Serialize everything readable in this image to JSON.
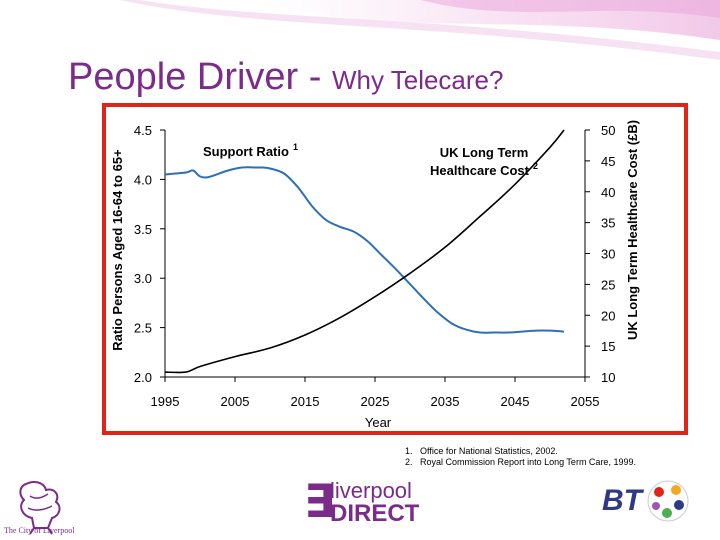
{
  "title": {
    "main": "People Driver - ",
    "sub": "Why Telecare?"
  },
  "chart_data": {
    "type": "line",
    "xlabel": "Year",
    "ylabel_left": "Ratio Persons Aged 16-64 to 65+",
    "ylabel_right": "UK Long Term Healthcare Cost (£B)",
    "x_ticks": [
      "1995",
      "2005",
      "2015",
      "2025",
      "2035",
      "2045",
      "2055"
    ],
    "y_left_ticks": [
      "4.5",
      "4.0",
      "3.5",
      "3.0",
      "2.5",
      "2.0"
    ],
    "y_right_ticks": [
      "50",
      "45",
      "40",
      "35",
      "30",
      "25",
      "20",
      "15",
      "10"
    ],
    "xlim": [
      1995,
      2055
    ],
    "ylim_left": [
      2.0,
      4.5
    ],
    "ylim_right": [
      10,
      50
    ],
    "series": [
      {
        "name": "Support Ratio",
        "label": "Support Ratio",
        "superscript": "1",
        "axis": "left",
        "x": [
          1995,
          1998,
          1999,
          2000,
          2001,
          2002,
          2004,
          2006,
          2008,
          2009,
          2010,
          2012,
          2014,
          2016,
          2018,
          2020,
          2022,
          2024,
          2026,
          2028,
          2030,
          2032,
          2034,
          2036,
          2038,
          2040,
          2042,
          2044,
          2046,
          2048,
          2050,
          2052
        ],
        "values": [
          4.05,
          4.07,
          4.09,
          4.03,
          4.02,
          4.04,
          4.09,
          4.12,
          4.12,
          4.12,
          4.11,
          4.06,
          3.92,
          3.73,
          3.59,
          3.52,
          3.47,
          3.37,
          3.23,
          3.09,
          2.94,
          2.79,
          2.65,
          2.54,
          2.48,
          2.45,
          2.45,
          2.45,
          2.46,
          2.47,
          2.47,
          2.46
        ]
      },
      {
        "name": "UK Long Term Healthcare Cost",
        "label": "UK Long Term Healthcare Cost",
        "superscript": "2",
        "axis": "right",
        "x": [
          1995,
          1998,
          2000,
          2005,
          2010,
          2015,
          2020,
          2025,
          2030,
          2035,
          2040,
          2045,
          2050,
          2052
        ],
        "values": [
          10.8,
          10.8,
          11.7,
          13.3,
          14.7,
          16.8,
          19.6,
          23.0,
          26.8,
          31.0,
          36.0,
          41.2,
          47.2,
          50.0
        ]
      }
    ]
  },
  "footnotes": [
    {
      "num": "1.",
      "text": "Office for National Statistics, 2002."
    },
    {
      "num": "2.",
      "text": "Royal Commission Report into Long Term Care, 1999."
    }
  ],
  "logos": {
    "city": "The City of Liverpool",
    "lp_line1": "liverpool",
    "lp_line2": "DIRECT",
    "bt": "BT"
  },
  "colors": {
    "accent": "#7b2b8a",
    "frame": "#e2231a",
    "ratio_line": "#2e6fb5",
    "cost_line": "#000000",
    "bt_blue": "#2f3a86"
  }
}
